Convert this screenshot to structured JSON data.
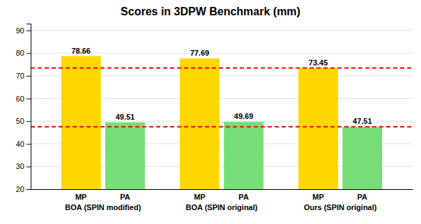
{
  "chart_data": {
    "type": "bar",
    "title": "Scores in 3DPW Benchmark (mm)",
    "categories": [
      "BOA (SPIN modified)",
      "BOA (SPIN original)",
      "Ours (SPIN original)"
    ],
    "series": [
      {
        "name": "MP",
        "color": "#FFD700",
        "values": [
          78.66,
          77.69,
          73.45
        ]
      },
      {
        "name": "PA",
        "color": "#77DD77",
        "values": [
          49.51,
          49.69,
          47.51
        ]
      }
    ],
    "reference_lines": [
      {
        "value": 73.45,
        "color": "#FF0000",
        "line_style": "dashed"
      },
      {
        "value": 47.51,
        "color": "#FF0000",
        "line_style": "dashed"
      }
    ],
    "ylim": [
      20,
      93
    ],
    "yticks": [
      20,
      30,
      40,
      50,
      60,
      70,
      80,
      90
    ],
    "grid": true,
    "data_labels": true
  }
}
